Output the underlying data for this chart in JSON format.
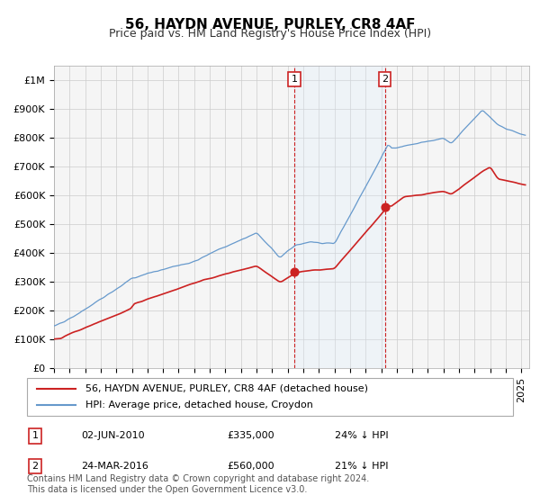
{
  "title": "56, HAYDN AVENUE, PURLEY, CR8 4AF",
  "subtitle": "Price paid vs. HM Land Registry's House Price Index (HPI)",
  "xlabel": "",
  "ylabel": "",
  "background_color": "#ffffff",
  "plot_bg_color": "#f5f5f5",
  "grid_color": "#cccccc",
  "hpi_color": "#6699cc",
  "price_color": "#cc2222",
  "purchase1_date_num": 2010.42,
  "purchase1_price": 335000,
  "purchase1_label": "02-JUN-2010",
  "purchase1_pct": "24% ↓ HPI",
  "purchase2_date_num": 2016.23,
  "purchase2_price": 560000,
  "purchase2_label": "24-MAR-2016",
  "purchase2_pct": "21% ↓ HPI",
  "ylim_max": 1050000,
  "ylim_min": 0,
  "xlim_min": 1995.0,
  "xlim_max": 2025.5,
  "shade_color": "#ddeeff",
  "legend_entry1": "56, HAYDN AVENUE, PURLEY, CR8 4AF (detached house)",
  "legend_entry2": "HPI: Average price, detached house, Croydon",
  "footer": "Contains HM Land Registry data © Crown copyright and database right 2024.\nThis data is licensed under the Open Government Licence v3.0.",
  "title_fontsize": 11,
  "subtitle_fontsize": 9,
  "tick_fontsize": 8,
  "legend_fontsize": 8,
  "footer_fontsize": 7
}
